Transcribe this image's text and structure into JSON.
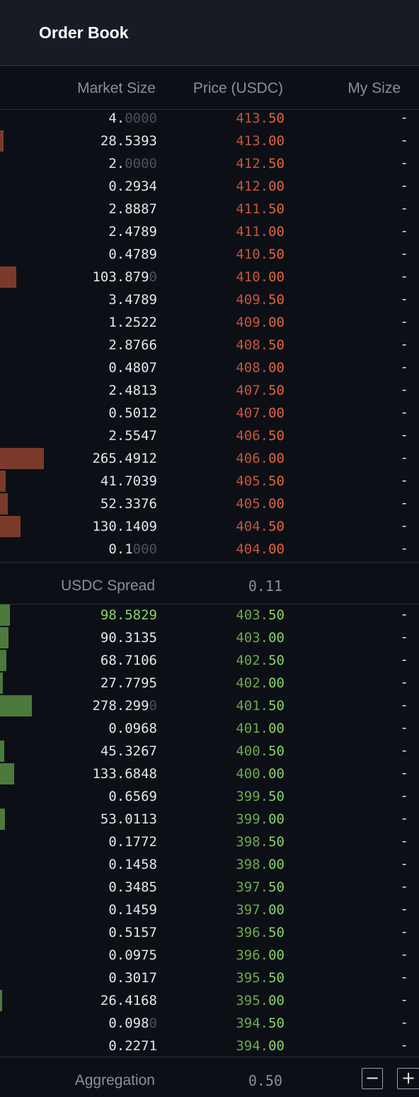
{
  "panel": {
    "title": "Order Book"
  },
  "columns": {
    "market_size": "Market Size",
    "price": "Price (USDC)",
    "my_size": "My Size"
  },
  "asks": [
    {
      "size": "4.",
      "size_dim": "0000",
      "price": "413.",
      "price_dec": "50",
      "mine": "-",
      "depth": 0
    },
    {
      "size": "28.5393",
      "size_dim": "",
      "price": "413.",
      "price_dec": "00",
      "mine": "-",
      "depth": 0.08
    },
    {
      "size": "2.",
      "size_dim": "0000",
      "price": "412.",
      "price_dec": "50",
      "mine": "-",
      "depth": 0
    },
    {
      "size": "0.2934",
      "size_dim": "",
      "price": "412.",
      "price_dec": "00",
      "mine": "-",
      "depth": 0
    },
    {
      "size": "2.8887",
      "size_dim": "",
      "price": "411.",
      "price_dec": "50",
      "mine": "-",
      "depth": 0
    },
    {
      "size": "2.4789",
      "size_dim": "",
      "price": "411.",
      "price_dec": "00",
      "mine": "-",
      "depth": 0
    },
    {
      "size": "0.4789",
      "size_dim": "",
      "price": "410.",
      "price_dec": "50",
      "mine": "-",
      "depth": 0
    },
    {
      "size": "103.879",
      "size_dim": "0",
      "price": "410.",
      "price_dec": "00",
      "mine": "-",
      "depth": 0.37
    },
    {
      "size": "3.4789",
      "size_dim": "",
      "price": "409.",
      "price_dec": "50",
      "mine": "-",
      "depth": 0
    },
    {
      "size": "1.2522",
      "size_dim": "",
      "price": "409.",
      "price_dec": "00",
      "mine": "-",
      "depth": 0
    },
    {
      "size": "2.8766",
      "size_dim": "",
      "price": "408.",
      "price_dec": "50",
      "mine": "-",
      "depth": 0
    },
    {
      "size": "0.4807",
      "size_dim": "",
      "price": "408.",
      "price_dec": "00",
      "mine": "-",
      "depth": 0
    },
    {
      "size": "2.4813",
      "size_dim": "",
      "price": "407.",
      "price_dec": "50",
      "mine": "-",
      "depth": 0
    },
    {
      "size": "0.5012",
      "size_dim": "",
      "price": "407.",
      "price_dec": "00",
      "mine": "-",
      "depth": 0
    },
    {
      "size": "2.5547",
      "size_dim": "",
      "price": "406.",
      "price_dec": "50",
      "mine": "-",
      "depth": 0
    },
    {
      "size": "265.4912",
      "size_dim": "",
      "price": "406.",
      "price_dec": "00",
      "mine": "-",
      "depth": 1.0
    },
    {
      "size": "41.7039",
      "size_dim": "",
      "price": "405.",
      "price_dec": "50",
      "mine": "-",
      "depth": 0.13
    },
    {
      "size": "52.3376",
      "size_dim": "",
      "price": "405.",
      "price_dec": "00",
      "mine": "-",
      "depth": 0.18
    },
    {
      "size": "130.1409",
      "size_dim": "",
      "price": "404.",
      "price_dec": "50",
      "mine": "-",
      "depth": 0.47
    },
    {
      "size": "0.1",
      "size_dim": "000",
      "price": "404.",
      "price_dec": "00",
      "mine": "-",
      "depth": 0
    }
  ],
  "spread": {
    "label": "USDC Spread",
    "value": "0.11"
  },
  "bids": [
    {
      "size": "98.5829",
      "size_dim": "",
      "price": "403.",
      "price_dec": "50",
      "mine": "-",
      "depth": 0.23,
      "highlight": true
    },
    {
      "size": "90.3135",
      "size_dim": "",
      "price": "403.",
      "price_dec": "00",
      "mine": "-",
      "depth": 0.2
    },
    {
      "size": "68.7106",
      "size_dim": "",
      "price": "402.",
      "price_dec": "50",
      "mine": "-",
      "depth": 0.15
    },
    {
      "size": "27.7795",
      "size_dim": "",
      "price": "402.",
      "price_dec": "00",
      "mine": "-",
      "depth": 0.06
    },
    {
      "size": "278.299",
      "size_dim": "0",
      "price": "401.",
      "price_dec": "50",
      "mine": "-",
      "depth": 0.73
    },
    {
      "size": "0.0968",
      "size_dim": "",
      "price": "401.",
      "price_dec": "00",
      "mine": "-",
      "depth": 0
    },
    {
      "size": "45.3267",
      "size_dim": "",
      "price": "400.",
      "price_dec": "50",
      "mine": "-",
      "depth": 0.1
    },
    {
      "size": "133.6848",
      "size_dim": "",
      "price": "400.",
      "price_dec": "00",
      "mine": "-",
      "depth": 0.33
    },
    {
      "size": "0.6569",
      "size_dim": "",
      "price": "399.",
      "price_dec": "50",
      "mine": "-",
      "depth": 0
    },
    {
      "size": "53.0113",
      "size_dim": "",
      "price": "399.",
      "price_dec": "00",
      "mine": "-",
      "depth": 0.12
    },
    {
      "size": "0.1772",
      "size_dim": "",
      "price": "398.",
      "price_dec": "50",
      "mine": "-",
      "depth": 0
    },
    {
      "size": "0.1458",
      "size_dim": "",
      "price": "398.",
      "price_dec": "00",
      "mine": "-",
      "depth": 0
    },
    {
      "size": "0.3485",
      "size_dim": "",
      "price": "397.",
      "price_dec": "50",
      "mine": "-",
      "depth": 0
    },
    {
      "size": "0.1459",
      "size_dim": "",
      "price": "397.",
      "price_dec": "00",
      "mine": "-",
      "depth": 0
    },
    {
      "size": "0.5157",
      "size_dim": "",
      "price": "396.",
      "price_dec": "50",
      "mine": "-",
      "depth": 0
    },
    {
      "size": "0.0975",
      "size_dim": "",
      "price": "396.",
      "price_dec": "00",
      "mine": "-",
      "depth": 0
    },
    {
      "size": "0.3017",
      "size_dim": "",
      "price": "395.",
      "price_dec": "50",
      "mine": "-",
      "depth": 0
    },
    {
      "size": "26.4168",
      "size_dim": "",
      "price": "395.",
      "price_dec": "00",
      "mine": "-",
      "depth": 0.05
    },
    {
      "size": "0.098",
      "size_dim": "0",
      "price": "394.",
      "price_dec": "50",
      "mine": "-",
      "depth": 0
    },
    {
      "size": "0.2271",
      "size_dim": "",
      "price": "394.",
      "price_dec": "00",
      "mine": "-",
      "depth": 0
    }
  ],
  "aggregation": {
    "label": "Aggregation",
    "value": "0.50",
    "minus": "−",
    "plus": "+"
  }
}
